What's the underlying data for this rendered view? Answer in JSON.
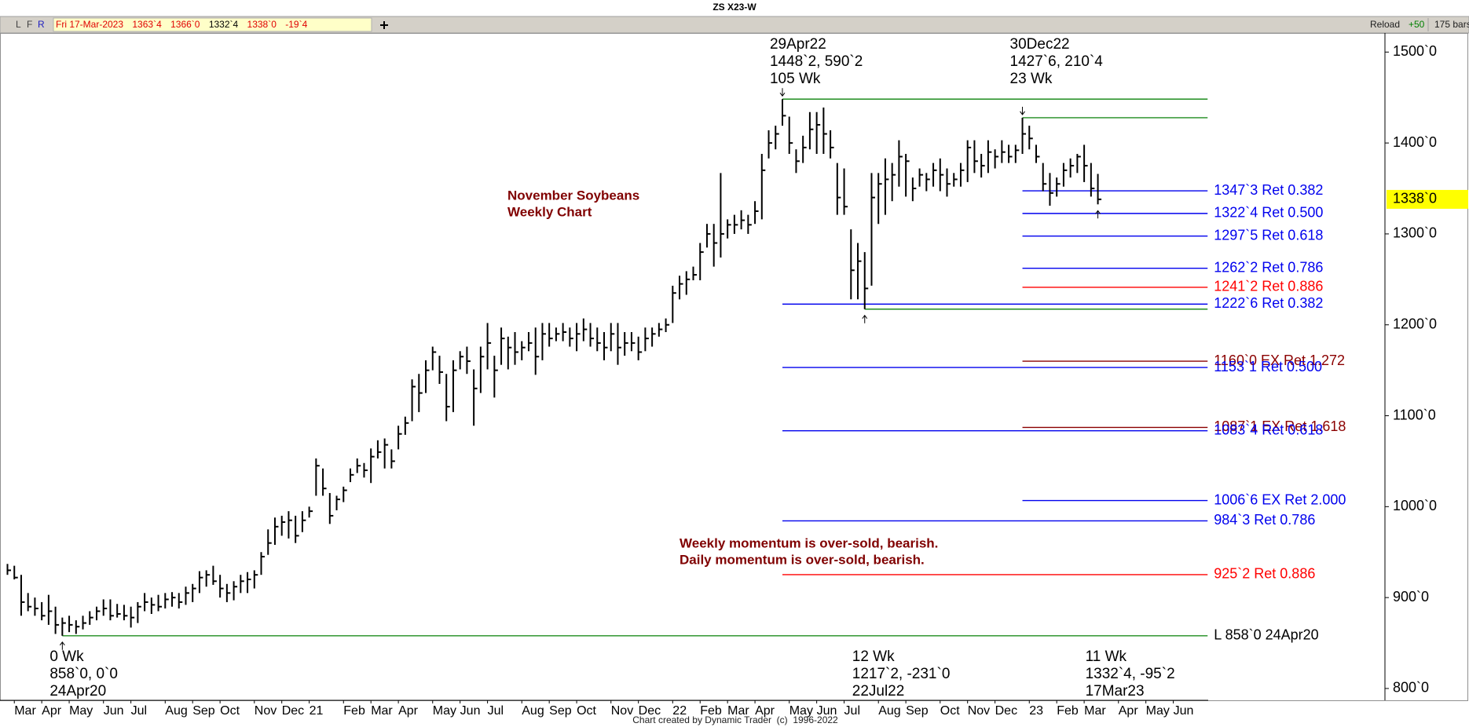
{
  "header": {
    "title": "ZS X23-W",
    "buttons": [
      "L",
      "F",
      "R"
    ],
    "quote": {
      "date": "Fri 17-Mar-2023",
      "open": "1363`4",
      "high": "1366`0",
      "low": "1332`4",
      "close": "1338`0",
      "change": "-19`4"
    },
    "reload": "Reload",
    "step": "+50",
    "bars": "175 bars"
  },
  "footer": "Chart created by Dynamic Trader  (c)  1996-2022",
  "chart_data": {
    "type": "ohlc",
    "categories": [
      null,
      "Mar",
      null,
      null,
      null,
      "Apr",
      null,
      null,
      null,
      "May",
      null,
      null,
      null,
      null,
      "Jun",
      null,
      null,
      null,
      "Jul",
      null,
      null,
      null,
      null,
      "Aug",
      null,
      null,
      null,
      "Sep",
      null,
      null,
      null,
      "Oct",
      null,
      null,
      null,
      null,
      "Nov",
      null,
      null,
      null,
      "Dec",
      null,
      null,
      null,
      "21",
      null,
      null,
      null,
      null,
      "Feb",
      null,
      null,
      null,
      "Mar",
      null,
      null,
      null,
      "Apr",
      null,
      null,
      null,
      null,
      "May",
      null,
      null,
      null,
      "Jun",
      null,
      null,
      null,
      "Jul",
      null,
      null,
      null,
      null,
      "Aug",
      null,
      null,
      null,
      "Sep",
      null,
      null,
      null,
      "Oct",
      null,
      null,
      null,
      null,
      "Nov",
      null,
      null,
      null,
      "Dec",
      null,
      null,
      null,
      null,
      "22",
      null,
      null,
      null,
      "Feb",
      null,
      null,
      null,
      "Mar",
      null,
      null,
      null,
      "Apr",
      null,
      null,
      null,
      null,
      "May",
      null,
      null,
      null,
      "Jun",
      null,
      null,
      null,
      "Jul",
      null,
      null,
      null,
      null,
      "Aug",
      null,
      null,
      null,
      "Sep",
      null,
      null,
      null,
      null,
      "Oct",
      null,
      null,
      null,
      "Nov",
      null,
      null,
      null,
      "Dec",
      null,
      null,
      null,
      null,
      "23",
      null,
      null,
      null,
      "Feb",
      null,
      null,
      null,
      "Mar",
      null,
      null,
      null,
      null,
      "Apr",
      null,
      null,
      null,
      "May",
      null,
      null,
      null,
      "Jun",
      null,
      null,
      null,
      null
    ],
    "high": [
      937,
      935,
      925,
      905,
      900,
      895,
      903,
      890,
      878,
      880,
      875,
      880,
      885,
      890,
      898,
      898,
      893,
      892,
      890,
      895,
      905,
      900,
      903,
      905,
      906,
      905,
      912,
      915,
      929,
      930,
      935,
      925,
      915,
      918,
      925,
      928,
      930,
      950,
      975,
      988,
      990,
      995,
      990,
      995,
      1000,
      1053,
      1042,
      1015,
      1012,
      1022,
      1042,
      1053,
      1048,
      1064,
      1073,
      1075,
      1063,
      1089,
      1099,
      1140,
      1146,
      1161,
      1176,
      1166,
      1146,
      1161,
      1171,
      1176,
      1151,
      1176,
      1202,
      1166,
      1197,
      1187,
      1192,
      1182,
      1192,
      1197,
      1202,
      1202,
      1197,
      1202,
      1197,
      1202,
      1207,
      1202,
      1197,
      1192,
      1202,
      1202,
      1192,
      1192,
      1187,
      1197,
      1197,
      1202,
      1207,
      1243,
      1254,
      1259,
      1264,
      1290,
      1311,
      1311,
      1367,
      1316,
      1321,
      1326,
      1321,
      1336,
      1388,
      1414,
      1419,
      1448.25,
      1429,
      1393,
      1408,
      1434,
      1434,
      1439,
      1414,
      1378,
      1372,
      1305,
      1290,
      1280,
      1367,
      1367,
      1383,
      1378,
      1403,
      1388,
      1362,
      1372,
      1367,
      1378,
      1383,
      1372,
      1367,
      1378,
      1403,
      1403,
      1388,
      1403,
      1393,
      1403,
      1398,
      1398,
      1427.75,
      1419,
      1398,
      1378,
      1367,
      1362,
      1378,
      1383,
      1388,
      1398,
      1378,
      1366,
      null,
      null,
      null,
      null,
      null,
      null,
      null,
      null,
      null,
      null,
      null,
      null,
      null,
      null,
      null
    ],
    "low": [
      925,
      920,
      880,
      885,
      880,
      875,
      870,
      860,
      858,
      862,
      860,
      865,
      870,
      875,
      880,
      875,
      878,
      875,
      867,
      872,
      885,
      882,
      885,
      888,
      890,
      888,
      892,
      895,
      905,
      912,
      914,
      900,
      895,
      897,
      905,
      905,
      910,
      925,
      947,
      958,
      968,
      965,
      960,
      972,
      988,
      1012,
      1012,
      981,
      996,
      1005,
      1027,
      1037,
      1032,
      1026,
      1053,
      1042,
      1042,
      1063,
      1079,
      1094,
      1104,
      1125,
      1150,
      1135,
      1094,
      1104,
      1151,
      1146,
      1089,
      1125,
      1151,
      1120,
      1156,
      1151,
      1156,
      1161,
      1171,
      1145,
      1161,
      1176,
      1182,
      1182,
      1176,
      1171,
      1182,
      1176,
      1171,
      1161,
      1171,
      1156,
      1166,
      1171,
      1161,
      1171,
      1176,
      1187,
      1192,
      1202,
      1228,
      1233,
      1249,
      1249,
      1285,
      1264,
      1274,
      1295,
      1300,
      1305,
      1300,
      1311,
      1316,
      1383,
      1393,
      1419,
      1388,
      1367,
      1378,
      1393,
      1388,
      1388,
      1383,
      1321,
      1321,
      1228,
      1228,
      1217.25,
      1243,
      1311,
      1321,
      1336,
      1352,
      1341,
      1336,
      1352,
      1347,
      1352,
      1347,
      1341,
      1352,
      1352,
      1357,
      1367,
      1362,
      1367,
      1372,
      1378,
      1378,
      1378,
      1388,
      1393,
      1378,
      1347,
      1331,
      1341,
      1352,
      1362,
      1367,
      1357,
      1341,
      1332.5,
      null,
      null,
      null,
      null,
      null,
      null,
      null,
      null,
      null,
      null,
      null,
      null,
      null,
      null,
      null
    ],
    "close": [
      930,
      922,
      895,
      890,
      888,
      880,
      885,
      870,
      872,
      870,
      868,
      872,
      878,
      885,
      888,
      880,
      882,
      880,
      878,
      890,
      895,
      892,
      890,
      898,
      900,
      895,
      905,
      910,
      922,
      925,
      918,
      910,
      905,
      912,
      918,
      920,
      925,
      945,
      960,
      978,
      983,
      985,
      968,
      985,
      995,
      1045,
      1020,
      990,
      1008,
      1018,
      1035,
      1045,
      1040,
      1055,
      1060,
      1068,
      1050,
      1080,
      1092,
      1132,
      1125,
      1150,
      1170,
      1148,
      1110,
      1150,
      1165,
      1160,
      1130,
      1165,
      1180,
      1150,
      1185,
      1175,
      1170,
      1175,
      1180,
      1165,
      1190,
      1185,
      1190,
      1192,
      1185,
      1190,
      1195,
      1185,
      1180,
      1175,
      1190,
      1175,
      1180,
      1180,
      1170,
      1185,
      1190,
      1195,
      1200,
      1235,
      1245,
      1250,
      1255,
      1280,
      1300,
      1290,
      1300,
      1310,
      1310,
      1315,
      1310,
      1325,
      1370,
      1400,
      1410,
      1430,
      1400,
      1380,
      1395,
      1415,
      1420,
      1410,
      1395,
      1340,
      1330,
      1260,
      1270,
      1240,
      1340,
      1355,
      1360,
      1365,
      1385,
      1380,
      1350,
      1365,
      1360,
      1370,
      1365,
      1355,
      1360,
      1370,
      1395,
      1380,
      1375,
      1390,
      1385,
      1390,
      1385,
      1392,
      1410,
      1405,
      1385,
      1355,
      1345,
      1355,
      1370,
      1375,
      1385,
      1375,
      1350,
      1338,
      null,
      null,
      null,
      null,
      null,
      null,
      null,
      null,
      null,
      null,
      null,
      null,
      null,
      null,
      null
    ],
    "color": "#000000",
    "ylim": [
      787,
      1521
    ],
    "yticks": [
      {
        "value": 800,
        "label": "800`0"
      },
      {
        "value": 900,
        "label": "900`0"
      },
      {
        "value": 1000,
        "label": "1000`0"
      },
      {
        "value": 1100,
        "label": "1100`0"
      },
      {
        "value": 1200,
        "label": "1200`0"
      },
      {
        "value": 1300,
        "label": "1300`0"
      },
      {
        "value": 1400,
        "label": "1400`0"
      },
      {
        "value": 1500,
        "label": "1500`0"
      }
    ],
    "last": {
      "value": 1338,
      "label": "1338`0",
      "color": "#ffff00"
    },
    "levels": [
      {
        "value": 1448.25,
        "color": "#1e8c1e",
        "from": 113
      },
      {
        "value": 1427.75,
        "color": "#1e8c1e",
        "from": 148
      },
      {
        "value": 1347.375,
        "label": "1347`3 Ret 0.382",
        "color": "#0000ee",
        "from": 148
      },
      {
        "value": 1322.5,
        "label": "1322`4 Ret 0.500",
        "color": "#0000ee",
        "from": 148
      },
      {
        "value": 1297.625,
        "label": "1297`5 Ret 0.618",
        "color": "#0000ee",
        "from": 148
      },
      {
        "value": 1262.25,
        "label": "1262`2 Ret 0.786",
        "color": "#0000ee",
        "from": 148
      },
      {
        "value": 1241.25,
        "label": "1241`2 Ret 0.886",
        "color": "#ff0000",
        "from": 148
      },
      {
        "value": 1222.75,
        "label": "1222`6 Ret 0.382",
        "color": "#0000ee",
        "from": 113
      },
      {
        "value": 1217.25,
        "color": "#1e8c1e",
        "from": 125
      },
      {
        "value": 1160,
        "label": "1160`0 EX Ret 1.272",
        "color": "#8b0000",
        "from": 148
      },
      {
        "value": 1153.125,
        "label": "1153`1 Ret 0.500",
        "color": "#0000ee",
        "from": 113
      },
      {
        "value": 1087.125,
        "label": "1087`1 EX Ret 1.618",
        "color": "#8b0000",
        "from": 148
      },
      {
        "value": 1083.5,
        "label": "1083`4 Ret 0.618",
        "color": "#0000ee",
        "from": 113
      },
      {
        "value": 1006.75,
        "label": "1006`6 EX Ret 2.000",
        "color": "#0000ee",
        "from": 148
      },
      {
        "value": 984.375,
        "label": "984`3 Ret 0.786",
        "color": "#0000ee",
        "from": 113
      },
      {
        "value": 925.25,
        "label": "925`2 Ret 0.886",
        "color": "#ff0000",
        "from": 113
      },
      {
        "value": 858,
        "label": "L 858`0 24Apr20",
        "color": "#1e8c1e",
        "label_color": "#000000",
        "from": 8
      }
    ],
    "pivots": [
      {
        "at": 113,
        "place": "above",
        "lines": [
          "29Apr22",
          "1448`2, 590`2",
          "105 Wk"
        ]
      },
      {
        "at": 148,
        "place": "above",
        "lines": [
          "30Dec22",
          "1427`6, 210`4",
          "23 Wk"
        ]
      },
      {
        "at": 8,
        "place": "below",
        "lines": [
          "0 Wk",
          "858`0, 0`0",
          "24Apr20"
        ]
      },
      {
        "at": 125,
        "place": "below",
        "lines": [
          "12 Wk",
          "1217`2, -231`0",
          "22Jul22"
        ]
      },
      {
        "at": 159,
        "place": "below",
        "lines": [
          "11 Wk",
          "1332`4, -95`2",
          "17Mar23"
        ]
      }
    ],
    "notes": [
      [
        "November Soybeans",
        "Weekly Chart"
      ],
      [
        "Weekly momentum is over-sold, bearish.",
        "Daily momentum is over-sold, bearish."
      ]
    ]
  }
}
